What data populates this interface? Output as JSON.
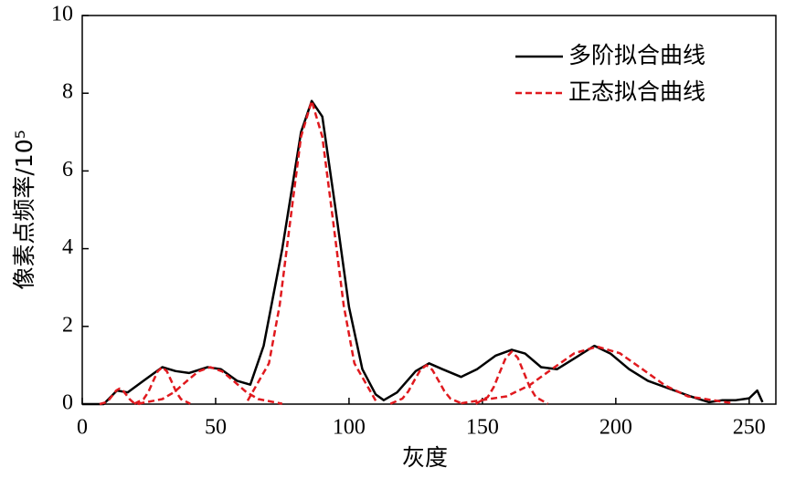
{
  "chart_data": {
    "type": "line",
    "xlabel": "灰度",
    "ylabel": "像素点频率/10⁵",
    "xlim": [
      0,
      260
    ],
    "ylim": [
      0,
      10
    ],
    "xticks": [
      0,
      50,
      100,
      150,
      200,
      250
    ],
    "yticks": [
      0,
      2,
      4,
      6,
      8,
      10
    ],
    "legend": "upper right",
    "series": [
      {
        "name": "多阶拟合曲线",
        "color": "#000000",
        "style": "solid",
        "x": [
          0,
          8,
          13,
          17,
          23,
          30,
          35,
          40,
          47,
          52,
          58,
          63,
          68,
          75,
          82,
          86,
          90,
          95,
          100,
          105,
          110,
          113,
          118,
          125,
          130,
          135,
          142,
          148,
          155,
          161,
          166,
          172,
          178,
          185,
          192,
          198,
          205,
          212,
          220,
          228,
          235,
          240,
          245,
          250,
          253,
          255
        ],
        "values": [
          0,
          0,
          0.35,
          0.3,
          0.6,
          0.95,
          0.85,
          0.8,
          0.95,
          0.9,
          0.6,
          0.5,
          1.5,
          4.0,
          7.0,
          7.8,
          7.4,
          5.0,
          2.5,
          0.9,
          0.25,
          0.1,
          0.3,
          0.85,
          1.05,
          0.9,
          0.7,
          0.9,
          1.25,
          1.4,
          1.3,
          0.95,
          0.9,
          1.2,
          1.5,
          1.3,
          0.9,
          0.6,
          0.4,
          0.2,
          0.05,
          0.1,
          0.1,
          0.15,
          0.35,
          0.05
        ]
      },
      {
        "name": "正态拟合曲线",
        "color": "#e0191e",
        "style": "dashed",
        "components": [
          {
            "x": [
              6.5,
              9,
              10.25,
              11.5,
              12.75,
              14,
              15.25,
              16.5,
              17.75,
              19,
              21.5
            ],
            "values": [
              0,
              0.05,
              0.13,
              0.24,
              0.35,
              0.4,
              0.35,
              0.24,
              0.13,
              0.05,
              0
            ]
          },
          {
            "x": [
              19.5,
              23,
              24.75,
              26.5,
              28.25,
              30,
              31.75,
              33.5,
              35.25,
              37,
              40.5
            ],
            "values": [
              0.01,
              0.13,
              0.31,
              0.58,
              0.84,
              0.95,
              0.84,
              0.58,
              0.31,
              0.13,
              0.01
            ]
          },
          {
            "x": [
              21,
              30,
              34.5,
              39,
              43.5,
              48,
              52.5,
              57,
              61.5,
              66,
              75
            ],
            "values": [
              0.01,
              0.13,
              0.31,
              0.58,
              0.84,
              0.95,
              0.84,
              0.58,
              0.31,
              0.13,
              0.01
            ]
          },
          {
            "x": [
              62,
              70,
              74,
              78,
              82,
              86,
              90,
              94,
              98,
              102,
              110
            ],
            "values": [
              0.09,
              1.05,
              2.54,
              4.73,
              6.88,
              7.8,
              6.88,
              4.73,
              2.54,
              1.05,
              0.09
            ]
          },
          {
            "x": [
              115.5,
              120,
              122.25,
              124.5,
              126.75,
              129,
              131.25,
              133.5,
              135.75,
              138,
              142.5
            ],
            "values": [
              0.01,
              0.14,
              0.33,
              0.61,
              0.88,
              1,
              0.88,
              0.61,
              0.33,
              0.14,
              0.01
            ]
          },
          {
            "x": [
              147.5,
              152,
              154.25,
              156.5,
              158.75,
              161,
              163.25,
              165.5,
              167.75,
              170,
              174.5
            ],
            "values": [
              0.01,
              0.18,
              0.44,
              0.82,
              1.19,
              1.35,
              1.19,
              0.82,
              0.44,
              0.18,
              0.01
            ]
          },
          {
            "x": [
              142,
              159,
              167.5,
              176,
              184.5,
              193,
              201.5,
              210,
              218.5,
              227,
              244
            ],
            "values": [
              0.02,
              0.2,
              0.48,
              0.9,
              1.31,
              1.48,
              1.31,
              0.9,
              0.48,
              0.2,
              0.02
            ]
          }
        ]
      }
    ]
  }
}
